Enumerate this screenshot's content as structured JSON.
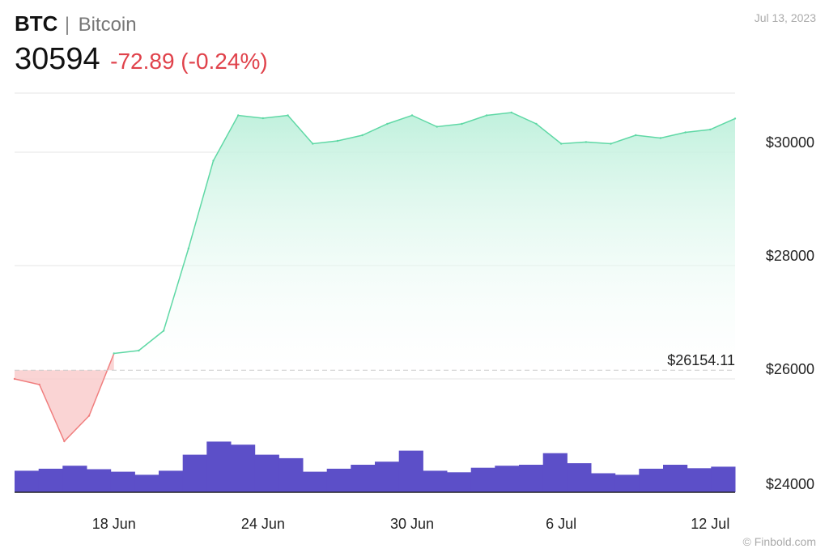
{
  "header": {
    "ticker": "BTC",
    "separator": "|",
    "name": "Bitcoin",
    "price": "30594",
    "change": "-72.89 (-0.24%)",
    "date": "Jul 13, 2023",
    "credit": "© Finbold.com"
  },
  "colors": {
    "up_line": "#5fd8a5",
    "up_fill_top": "#bdf0db",
    "down_line": "#f07e7e",
    "down_fill": "#f9c9c9",
    "volume": "#5c4fc8",
    "negative": "#e0424b"
  },
  "chart_data": {
    "type": "area",
    "x": [
      "Jun 14",
      "Jun 15",
      "Jun 16",
      "Jun 17",
      "Jun 18",
      "Jun 19",
      "Jun 20",
      "Jun 21",
      "Jun 22",
      "Jun 23",
      "Jun 24",
      "Jun 25",
      "Jun 26",
      "Jun 27",
      "Jun 28",
      "Jun 29",
      "Jun 30",
      "Jul 1",
      "Jul 2",
      "Jul 3",
      "Jul 4",
      "Jul 5",
      "Jul 6",
      "Jul 7",
      "Jul 8",
      "Jul 9",
      "Jul 10",
      "Jul 11",
      "Jul 12",
      "Jul 13"
    ],
    "series": [
      {
        "values": [
          26000,
          25900,
          24900,
          25350,
          26450,
          26500,
          26850,
          28300,
          29850,
          30650,
          30600,
          30650,
          30150,
          30200,
          30300,
          30500,
          30650,
          30450,
          30500,
          30650,
          30700,
          30500,
          30150,
          30180,
          30150,
          30300,
          30250,
          30350,
          30400,
          30594
        ]
      }
    ],
    "reference": {
      "value": 26154.11,
      "label": "$26154.11"
    },
    "volume_index": [
      0.3,
      0.34,
      0.4,
      0.33,
      0.28,
      0.22,
      0.3,
      0.62,
      0.88,
      0.82,
      0.62,
      0.55,
      0.28,
      0.34,
      0.42,
      0.48,
      0.7,
      0.3,
      0.27,
      0.36,
      0.4,
      0.42,
      0.65,
      0.45,
      0.25,
      0.22,
      0.34,
      0.42,
      0.35,
      0.38
    ],
    "y_ticks": [
      "$30000",
      "$28000",
      "$26000",
      "$24000"
    ],
    "y_tick_values": [
      30000,
      28000,
      26000,
      24000
    ],
    "x_ticks": [
      "18 Jun",
      "24 Jun",
      "30 Jun",
      "6 Jul",
      "12 Jul"
    ],
    "x_tick_dates": [
      "Jun 18",
      "Jun 24",
      "Jun 30",
      "Jul 6",
      "Jul 12"
    ],
    "ylim": [
      24000,
      31000
    ],
    "grid": true
  }
}
